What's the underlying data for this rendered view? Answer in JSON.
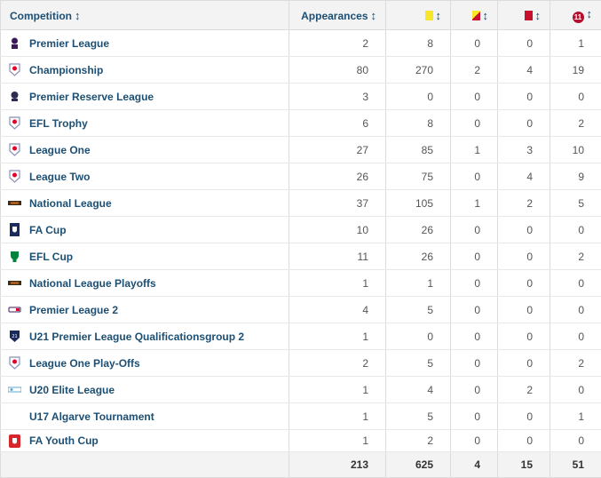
{
  "header": {
    "competition": "Competition",
    "appearances": "Appearances",
    "sort_glyph": "↕",
    "subs_badge": "11"
  },
  "rows": [
    {
      "name": "Premier League",
      "logo": "premier-league-logo",
      "apps": "2",
      "yellow": "8",
      "yellow_red": "0",
      "red": "0",
      "subs": "1"
    },
    {
      "name": "Championship",
      "logo": "efl-logo",
      "apps": "80",
      "yellow": "270",
      "yellow_red": "2",
      "red": "4",
      "subs": "19"
    },
    {
      "name": "Premier Reserve League",
      "logo": "premier-reserve-logo",
      "apps": "3",
      "yellow": "0",
      "yellow_red": "0",
      "red": "0",
      "subs": "0"
    },
    {
      "name": "EFL Trophy",
      "logo": "efl-logo",
      "apps": "6",
      "yellow": "8",
      "yellow_red": "0",
      "red": "0",
      "subs": "2"
    },
    {
      "name": "League One",
      "logo": "efl-logo",
      "apps": "27",
      "yellow": "85",
      "yellow_red": "1",
      "red": "3",
      "subs": "10"
    },
    {
      "name": "League Two",
      "logo": "efl-logo",
      "apps": "26",
      "yellow": "75",
      "yellow_red": "0",
      "red": "4",
      "subs": "9"
    },
    {
      "name": "National League",
      "logo": "national-league-logo",
      "apps": "37",
      "yellow": "105",
      "yellow_red": "1",
      "red": "2",
      "subs": "5"
    },
    {
      "name": "FA Cup",
      "logo": "fa-cup-logo",
      "apps": "10",
      "yellow": "26",
      "yellow_red": "0",
      "red": "0",
      "subs": "0"
    },
    {
      "name": "EFL Cup",
      "logo": "efl-cup-logo",
      "apps": "11",
      "yellow": "26",
      "yellow_red": "0",
      "red": "0",
      "subs": "2"
    },
    {
      "name": "National League Playoffs",
      "logo": "national-league-logo",
      "apps": "1",
      "yellow": "1",
      "yellow_red": "0",
      "red": "0",
      "subs": "0"
    },
    {
      "name": "Premier League 2",
      "logo": "premier-league-2-logo",
      "apps": "4",
      "yellow": "5",
      "yellow_red": "0",
      "red": "0",
      "subs": "0"
    },
    {
      "name": "U21 Premier League Qualificationsgroup 2",
      "logo": "u21-premier-league-logo",
      "apps": "1",
      "yellow": "0",
      "yellow_red": "0",
      "red": "0",
      "subs": "0"
    },
    {
      "name": "League One Play-Offs",
      "logo": "efl-logo",
      "apps": "2",
      "yellow": "5",
      "yellow_red": "0",
      "red": "0",
      "subs": "2"
    },
    {
      "name": "U20 Elite League",
      "logo": "u20-elite-league-logo",
      "apps": "1",
      "yellow": "4",
      "yellow_red": "0",
      "red": "2",
      "subs": "0"
    },
    {
      "name": "U17 Algarve Tournament",
      "logo": "",
      "apps": "1",
      "yellow": "5",
      "yellow_red": "0",
      "red": "0",
      "subs": "1"
    },
    {
      "name": "FA Youth Cup",
      "logo": "fa-youth-cup-logo",
      "apps": "1",
      "yellow": "2",
      "yellow_red": "0",
      "red": "0",
      "subs": "0"
    }
  ],
  "totals": {
    "apps": "213",
    "yellow": "625",
    "yellow_red": "4",
    "red": "15",
    "subs": "51"
  },
  "colors": {
    "link": "#1c4f73",
    "yellow": "#f7e629",
    "red": "#c8102e",
    "header_bg": "#f3f3f3"
  }
}
